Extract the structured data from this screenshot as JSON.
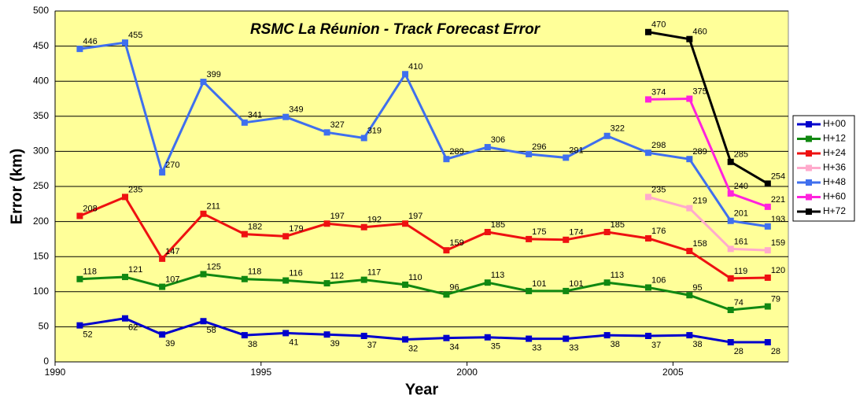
{
  "chart_data": {
    "type": "line",
    "title": "RSMC La Réunion - Track Forecast Error",
    "x_label": "Year",
    "y_label": "Error (km)",
    "x": [
      1990.6,
      1991.7,
      1992.6,
      1993.6,
      1994.6,
      1995.6,
      1996.6,
      1997.5,
      1998.5,
      1999.5,
      2000.5,
      2001.5,
      2002.4,
      2003.4,
      2004.4,
      2005.4,
      2006.4,
      2007.3
    ],
    "xlim": [
      1990,
      2007.8
    ],
    "xticks": [
      1990,
      1995,
      2000,
      2005
    ],
    "ylim": [
      0,
      500
    ],
    "yticks": [
      0,
      50,
      100,
      150,
      200,
      250,
      300,
      350,
      400,
      450,
      500
    ],
    "grid": true,
    "legend": "right",
    "background": "#ffff99",
    "series": [
      {
        "name": "H+00",
        "color": "#0000cc",
        "values": [
          52,
          62,
          39,
          58,
          38,
          41,
          39,
          37,
          32,
          34,
          35,
          33,
          33,
          38,
          37,
          38,
          28,
          28
        ]
      },
      {
        "name": "H+12",
        "color": "#118811",
        "values": [
          118,
          121,
          107,
          125,
          118,
          116,
          112,
          117,
          110,
          96,
          113,
          101,
          101,
          113,
          106,
          95,
          74,
          79
        ]
      },
      {
        "name": "H+24",
        "color": "#ee1111",
        "values": [
          208,
          235,
          147,
          211,
          182,
          179,
          197,
          192,
          197,
          159,
          185,
          175,
          174,
          185,
          176,
          158,
          119,
          120
        ]
      },
      {
        "name": "H+36",
        "color": "#ffaacc",
        "values": [
          null,
          null,
          null,
          null,
          null,
          null,
          null,
          null,
          null,
          null,
          null,
          null,
          null,
          null,
          235,
          219,
          161,
          159
        ]
      },
      {
        "name": "H+48",
        "color": "#3f6fee",
        "values": [
          446,
          455,
          270,
          399,
          341,
          349,
          327,
          319,
          410,
          289,
          306,
          296,
          291,
          322,
          298,
          289,
          201,
          193
        ]
      },
      {
        "name": "H+60",
        "color": "#ff22dd",
        "values": [
          null,
          null,
          null,
          null,
          null,
          null,
          null,
          null,
          null,
          null,
          null,
          null,
          null,
          null,
          374,
          375,
          240,
          221
        ]
      },
      {
        "name": "H+72",
        "color": "#000000",
        "values": [
          null,
          null,
          null,
          null,
          null,
          null,
          null,
          null,
          null,
          null,
          null,
          null,
          null,
          null,
          470,
          460,
          285,
          254
        ]
      }
    ]
  }
}
